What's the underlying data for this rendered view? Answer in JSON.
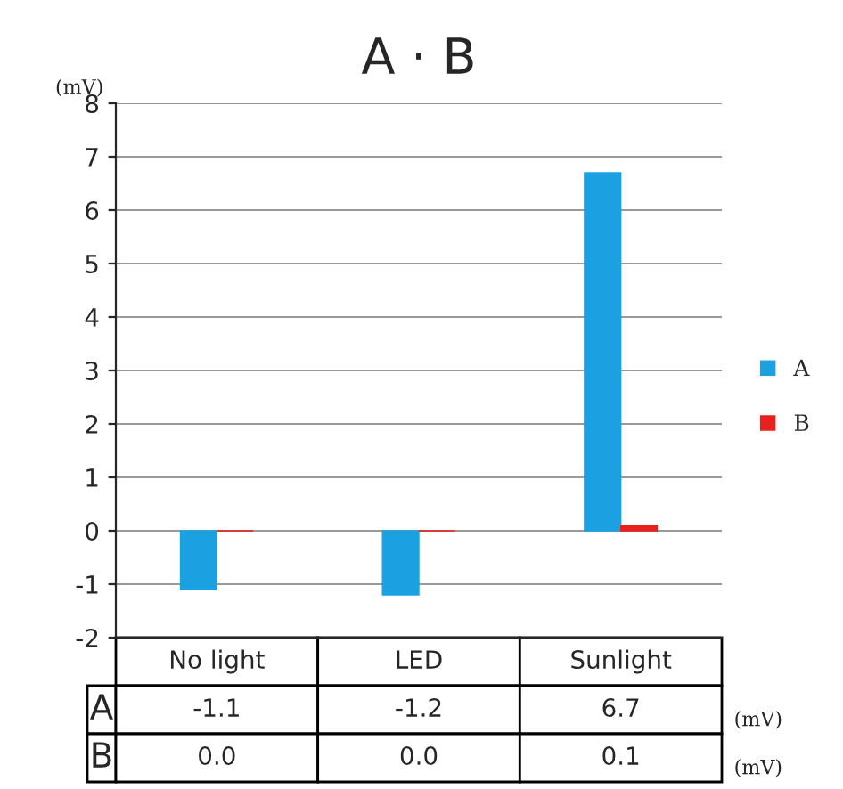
{
  "chart_data": {
    "type": "bar",
    "title": "A · B",
    "ylabel": "(mV)",
    "categories": [
      "No light",
      "LED",
      "Sunlight"
    ],
    "series": [
      {
        "name": "A",
        "color": "#1ba1e2",
        "values": [
          -1.1,
          -1.2,
          6.7
        ],
        "value_labels": [
          "-1.1",
          "-1.2",
          "6.7"
        ]
      },
      {
        "name": "B",
        "color": "#e8201e",
        "values": [
          0.0,
          0.0,
          0.1
        ],
        "value_labels": [
          "0.0",
          "0.0",
          "0.1"
        ]
      }
    ],
    "ylim": [
      -2,
      8
    ],
    "yticks": [
      -2,
      -1,
      0,
      1,
      2,
      3,
      4,
      5,
      6,
      7,
      8
    ],
    "grid": "y",
    "legend": "right",
    "annotations": [
      "(mV)",
      "(mV)"
    ]
  }
}
